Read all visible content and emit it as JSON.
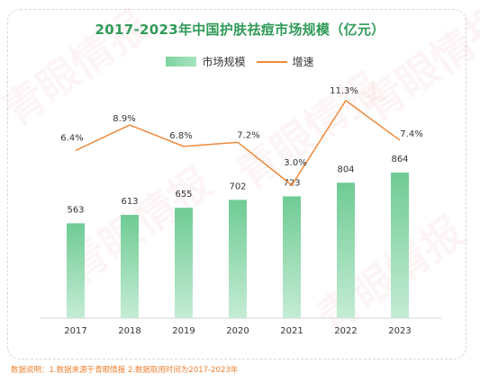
{
  "watermark": "青眼情报",
  "footnote": "数据说明：1.数据来源于青眼情报  2.数据取用时间为2017-2023年",
  "colors": {
    "title": "#2f9a57",
    "bar_top": "#6fcb94",
    "bar_bottom": "#c5ecd5",
    "line": "#ee8a3c",
    "footnote": "#ee7f2d"
  },
  "chart_data": {
    "type": "bar",
    "title": "2017-2023年中国护肤祛痘市场规模（亿元）",
    "categories": [
      "2017",
      "2018",
      "2019",
      "2020",
      "2021",
      "2022",
      "2023"
    ],
    "series": [
      {
        "name": "市场规模",
        "type": "bar",
        "values": [
          563,
          613,
          655,
          702,
          723,
          804,
          864
        ]
      },
      {
        "name": "增速",
        "type": "line",
        "values": [
          6.4,
          8.9,
          6.8,
          7.2,
          3.0,
          11.3,
          7.4
        ],
        "labels": [
          "6.4%",
          "8.9%",
          "6.8%",
          "7.2%",
          "3.0%",
          "11.3%",
          "7.4%"
        ]
      }
    ],
    "legend_position": "top-center",
    "grid": false
  }
}
